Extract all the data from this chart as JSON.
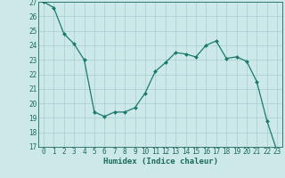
{
  "x": [
    0,
    1,
    2,
    3,
    4,
    5,
    6,
    7,
    8,
    9,
    10,
    11,
    12,
    13,
    14,
    15,
    16,
    17,
    18,
    19,
    20,
    21,
    22,
    23
  ],
  "y": [
    27.0,
    26.6,
    24.8,
    24.1,
    23.0,
    19.4,
    19.1,
    19.4,
    19.4,
    19.7,
    20.7,
    22.2,
    22.8,
    23.5,
    23.4,
    23.2,
    24.0,
    24.3,
    23.1,
    23.2,
    22.9,
    21.5,
    18.8,
    16.7
  ],
  "line_color": "#1a7a6e",
  "marker": "D",
  "marker_size": 2.0,
  "bg_color": "#cce8e8",
  "grid_color": "#a8cece",
  "xlabel": "Humidex (Indice chaleur)",
  "ylim": [
    17,
    27
  ],
  "xlim_min": -0.5,
  "xlim_max": 23.5,
  "yticks": [
    17,
    18,
    19,
    20,
    21,
    22,
    23,
    24,
    25,
    26,
    27
  ],
  "xticks": [
    0,
    1,
    2,
    3,
    4,
    5,
    6,
    7,
    8,
    9,
    10,
    11,
    12,
    13,
    14,
    15,
    16,
    17,
    18,
    19,
    20,
    21,
    22,
    23
  ],
  "tick_fontsize": 5.5,
  "xlabel_fontsize": 6.5,
  "tick_color": "#1a6a5a",
  "label_color": "#1a6a5a",
  "spine_color": "#1a6a5a"
}
